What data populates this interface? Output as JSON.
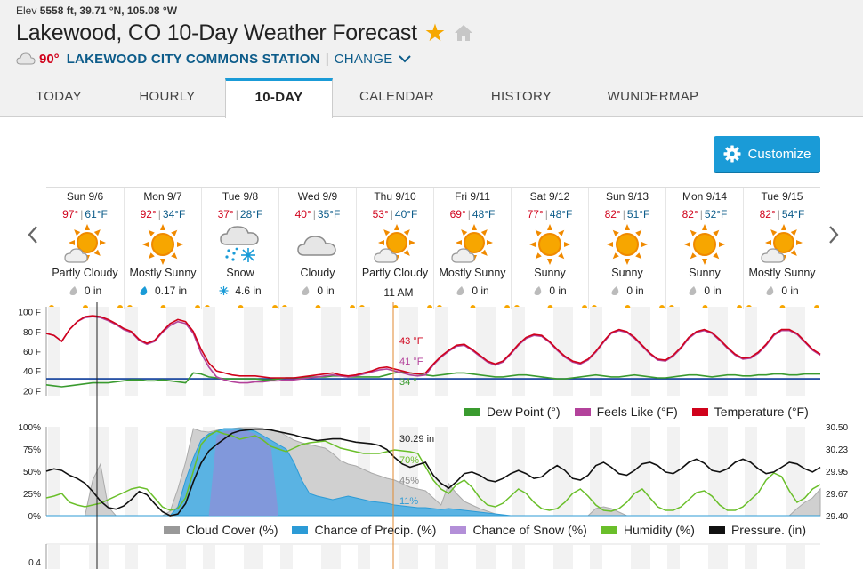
{
  "header": {
    "elev_label": "Elev",
    "elev_value": "5558",
    "coords": "ft, 39.71 °N, 105.08 °W",
    "title": "Lakewood, CO 10-Day Weather Forecast",
    "current_temp": "90°",
    "station": "LAKEWOOD CITY COMMONS STATION",
    "separator": "|",
    "change": "CHANGE"
  },
  "tabs": [
    {
      "label": "TODAY"
    },
    {
      "label": "HOURLY"
    },
    {
      "label": "10-DAY",
      "active": true
    },
    {
      "label": "CALENDAR"
    },
    {
      "label": "HISTORY"
    },
    {
      "label": "WUNDERMAP"
    }
  ],
  "customize_label": "Customize",
  "days": [
    {
      "date": "Sun 9/6",
      "hi": "97°",
      "lo": "61°F",
      "icon": "partly-cloudy-icon",
      "cond": "Partly Cloudy",
      "precip_icon": "drop-icon",
      "precip": "0 in"
    },
    {
      "date": "Mon 9/7",
      "hi": "92°",
      "lo": "34°F",
      "icon": "sunny-icon",
      "cond": "Mostly Sunny",
      "precip_icon": "rain-drop-icon",
      "precip": "0.17 in"
    },
    {
      "date": "Tue 9/8",
      "hi": "37°",
      "lo": "28°F",
      "icon": "snow-icon",
      "cond": "Snow",
      "precip_icon": "snowflake-icon",
      "precip": "4.6 in"
    },
    {
      "date": "Wed 9/9",
      "hi": "40°",
      "lo": "35°F",
      "icon": "cloudy-icon",
      "cond": "Cloudy",
      "precip_icon": "drop-icon",
      "precip": "0 in"
    },
    {
      "date": "Thu 9/10",
      "hi": "53°",
      "lo": "40°F",
      "icon": "partly-cloudy-icon",
      "cond": "Partly Cloudy",
      "precip_icon": "drop-icon",
      "precip": ""
    },
    {
      "date": "Fri 9/11",
      "hi": "69°",
      "lo": "48°F",
      "icon": "partly-cloudy-icon",
      "cond": "Mostly Sunny",
      "precip_icon": "drop-icon",
      "precip": "0 in"
    },
    {
      "date": "Sat 9/12",
      "hi": "77°",
      "lo": "48°F",
      "icon": "sunny-icon",
      "cond": "Sunny",
      "precip_icon": "drop-icon",
      "precip": "0 in"
    },
    {
      "date": "Sun 9/13",
      "hi": "82°",
      "lo": "51°F",
      "icon": "sunny-icon",
      "cond": "Sunny",
      "precip_icon": "drop-icon",
      "precip": "0 in"
    },
    {
      "date": "Mon 9/14",
      "hi": "82°",
      "lo": "52°F",
      "icon": "sunny-icon",
      "cond": "Sunny",
      "precip_icon": "drop-icon",
      "precip": "0 in"
    },
    {
      "date": "Tue 9/15",
      "hi": "82°",
      "lo": "54°F",
      "icon": "partly-cloudy-icon",
      "cond": "Mostly Sunny",
      "precip_icon": "drop-icon",
      "precip": "0 in"
    }
  ],
  "hover_time": "11 AM",
  "colors": {
    "accent": "#1a9bd7",
    "temperature": "#d0021b",
    "feels_like": "#b3429b",
    "dew_point": "#3a9b2f",
    "cloud_cover": "#999999",
    "precip": "#2c9bd6",
    "snow": "#8f8fd8",
    "humidity": "#6abf2a",
    "pressure": "#111111",
    "freezing": "#0d3c9a"
  },
  "chart_data": [
    {
      "type": "line",
      "name": "temperature-chart",
      "ylim": [
        15,
        105
      ],
      "yticks": [
        "100 F",
        "80 F",
        "60 F",
        "40 F",
        "20 F"
      ],
      "ytick_values": [
        100,
        80,
        60,
        40,
        20
      ],
      "x_days": 10,
      "series": [
        {
          "name": "Temperature (°F)",
          "color": "#d0021b",
          "values": [
            78,
            76,
            70,
            82,
            90,
            95,
            96,
            95,
            92,
            88,
            83,
            80,
            72,
            68,
            71,
            80,
            88,
            92,
            90,
            80,
            62,
            48,
            40,
            38,
            36,
            35,
            35,
            35,
            34,
            33,
            33,
            33,
            33,
            34,
            35,
            36,
            37,
            38,
            36,
            35,
            36,
            38,
            40,
            43,
            44,
            42,
            40,
            38,
            37,
            38,
            47,
            55,
            61,
            66,
            67,
            62,
            56,
            50,
            47,
            50,
            58,
            67,
            74,
            77,
            76,
            70,
            62,
            55,
            50,
            48,
            52,
            60,
            70,
            79,
            82,
            80,
            74,
            66,
            58,
            52,
            51,
            56,
            64,
            74,
            80,
            82,
            79,
            72,
            64,
            57,
            53,
            54,
            59,
            67,
            77,
            82,
            82,
            78,
            70,
            62,
            57
          ]
        },
        {
          "name": "Feels Like (°F)",
          "color": "#b3429b",
          "values": [
            78,
            76,
            70,
            82,
            90,
            94,
            95,
            94,
            91,
            87,
            82,
            79,
            71,
            67,
            70,
            79,
            86,
            90,
            88,
            78,
            58,
            44,
            34,
            31,
            29,
            28,
            28,
            29,
            29,
            30,
            30,
            31,
            31,
            32,
            33,
            34,
            35,
            36,
            35,
            34,
            35,
            37,
            39,
            41,
            42,
            40,
            38,
            36,
            35,
            36,
            46,
            54,
            60,
            65,
            66,
            61,
            55,
            49,
            46,
            49,
            57,
            66,
            73,
            76,
            75,
            69,
            61,
            54,
            49,
            47,
            51,
            59,
            69,
            78,
            81,
            79,
            73,
            65,
            57,
            51,
            50,
            55,
            63,
            73,
            79,
            81,
            78,
            71,
            63,
            56,
            52,
            53,
            58,
            66,
            76,
            81,
            81,
            77,
            69,
            61,
            56
          ]
        },
        {
          "name": "Dew Point (°)",
          "color": "#3a9b2f",
          "values": [
            26,
            25,
            24,
            25,
            26,
            27,
            28,
            28,
            28,
            29,
            30,
            31,
            31,
            30,
            30,
            31,
            30,
            29,
            28,
            38,
            37,
            34,
            33,
            32,
            32,
            32,
            32,
            32,
            31,
            31,
            32,
            33,
            33,
            33,
            34,
            34,
            34,
            35,
            35,
            34,
            34,
            34,
            34,
            34,
            36,
            38,
            39,
            38,
            37,
            36,
            35,
            36,
            37,
            38,
            38,
            37,
            36,
            35,
            34,
            34,
            35,
            36,
            36,
            35,
            34,
            33,
            32,
            32,
            33,
            34,
            35,
            36,
            35,
            34,
            34,
            35,
            36,
            35,
            34,
            33,
            33,
            34,
            35,
            36,
            36,
            35,
            34,
            35,
            36,
            36,
            35,
            35,
            36,
            36,
            37,
            37,
            36,
            36,
            37,
            37,
            37
          ]
        }
      ],
      "freezing_line": 32,
      "hover_labels": {
        "temperature": "43 °F",
        "feels_like": "41 °F",
        "dew_point": "34 °"
      }
    },
    {
      "type": "area",
      "name": "precip-chart",
      "ylim": [
        0,
        100
      ],
      "yticks_left": [
        "100%",
        "75%",
        "50%",
        "25%",
        "0%"
      ],
      "ytick_values": [
        100,
        75,
        50,
        25,
        0
      ],
      "yticks_right": [
        "30.50",
        "30.23",
        "29.95",
        "29.67",
        "29.40"
      ],
      "pressure_range": [
        29.4,
        30.5
      ],
      "series": [
        {
          "name": "Cloud Cover (%)",
          "color": "#999999",
          "values": [
            0,
            0,
            0,
            0,
            0,
            0,
            40,
            58,
            10,
            0,
            0,
            0,
            0,
            0,
            0,
            0,
            5,
            30,
            60,
            98,
            95,
            94,
            96,
            98,
            98,
            99,
            99,
            99,
            98,
            96,
            95,
            90,
            85,
            82,
            80,
            78,
            76,
            70,
            62,
            58,
            56,
            52,
            48,
            45,
            42,
            40,
            36,
            32,
            30,
            28,
            20,
            12,
            36,
            25,
            16,
            12,
            8,
            5,
            2,
            0,
            0,
            0,
            0,
            0,
            0,
            0,
            0,
            0,
            0,
            0,
            0,
            8,
            10,
            8,
            4,
            0,
            0,
            0,
            0,
            0,
            0,
            0,
            0,
            0,
            0,
            0,
            0,
            0,
            0,
            0,
            0,
            0,
            0,
            0,
            0,
            0,
            0,
            8,
            15,
            20,
            30
          ]
        },
        {
          "name": "Chance of Precip. (%)",
          "color": "#2c9bd6",
          "values": [
            0,
            0,
            0,
            0,
            0,
            0,
            0,
            0,
            0,
            0,
            0,
            0,
            0,
            0,
            0,
            0,
            0,
            10,
            40,
            65,
            85,
            92,
            95,
            98,
            98,
            98,
            97,
            95,
            90,
            85,
            80,
            75,
            60,
            40,
            25,
            22,
            20,
            18,
            20,
            22,
            20,
            18,
            16,
            15,
            14,
            12,
            11,
            10,
            9,
            9,
            8,
            7,
            8,
            7,
            6,
            5,
            4,
            3,
            2,
            1,
            0,
            0,
            0,
            0,
            0,
            0,
            0,
            0,
            0,
            0,
            0,
            0,
            0,
            0,
            0,
            0,
            0,
            0,
            0,
            0,
            0,
            0,
            0,
            0,
            0,
            0,
            0,
            0,
            0,
            0,
            0,
            0,
            0,
            0,
            0,
            0,
            0,
            0,
            0,
            0,
            0
          ]
        },
        {
          "name": "Chance of Snow (%)",
          "color": "#8f8fd8",
          "values": [
            0,
            0,
            0,
            0,
            0,
            0,
            0,
            0,
            0,
            0,
            0,
            0,
            0,
            0,
            0,
            0,
            0,
            0,
            0,
            0,
            0,
            0,
            90,
            95,
            96,
            96,
            95,
            92,
            88,
            80,
            0,
            0,
            0,
            0,
            0,
            0,
            0,
            0,
            0,
            0,
            0,
            0,
            0,
            0,
            0,
            0,
            0,
            0,
            0,
            0,
            0,
            0,
            0,
            0,
            0,
            0,
            0,
            0,
            0,
            0,
            0,
            0,
            0,
            0,
            0,
            0,
            0,
            0,
            0,
            0,
            0,
            0,
            0,
            0,
            0,
            0,
            0,
            0,
            0,
            0,
            0,
            0,
            0,
            0,
            0,
            0,
            0,
            0,
            0,
            0,
            0,
            0,
            0,
            0,
            0,
            0,
            0,
            0,
            0,
            0,
            0
          ]
        },
        {
          "name": "Humidity (%)",
          "color": "#6abf2a",
          "values": [
            20,
            22,
            25,
            15,
            12,
            10,
            12,
            14,
            18,
            22,
            26,
            30,
            32,
            30,
            20,
            10,
            6,
            8,
            20,
            50,
            80,
            90,
            95,
            92,
            90,
            86,
            88,
            90,
            85,
            78,
            75,
            72,
            76,
            80,
            82,
            83,
            84,
            80,
            76,
            74,
            72,
            70,
            70,
            70,
            72,
            74,
            73,
            72,
            70,
            55,
            40,
            30,
            25,
            35,
            40,
            32,
            20,
            12,
            10,
            14,
            22,
            30,
            25,
            15,
            8,
            6,
            8,
            15,
            25,
            30,
            22,
            12,
            6,
            5,
            8,
            15,
            25,
            30,
            20,
            10,
            6,
            6,
            10,
            18,
            26,
            28,
            22,
            12,
            6,
            6,
            10,
            18,
            26,
            40,
            48,
            44,
            28,
            15,
            20,
            30,
            35
          ]
        },
        {
          "name": "Pressure. (in)",
          "color": "#111111",
          "values": [
            29.95,
            29.98,
            29.96,
            29.9,
            29.86,
            29.8,
            29.7,
            29.58,
            29.5,
            29.48,
            29.52,
            29.6,
            29.7,
            29.66,
            29.55,
            29.45,
            29.4,
            29.42,
            29.55,
            29.82,
            30.05,
            30.2,
            30.28,
            30.35,
            30.42,
            30.45,
            30.46,
            30.47,
            30.47,
            30.46,
            30.44,
            30.42,
            30.4,
            30.37,
            30.35,
            30.33,
            30.34,
            30.35,
            30.35,
            30.33,
            30.31,
            30.3,
            30.29,
            30.27,
            30.22,
            30.12,
            30.04,
            30.0,
            30.03,
            30.06,
            29.9,
            29.8,
            29.74,
            29.82,
            29.92,
            29.94,
            29.9,
            29.84,
            29.82,
            29.86,
            29.92,
            29.96,
            29.92,
            29.86,
            29.88,
            29.96,
            30.02,
            29.96,
            29.86,
            29.84,
            29.9,
            30.02,
            30.06,
            30.0,
            29.92,
            29.9,
            29.96,
            30.04,
            30.06,
            30.02,
            29.94,
            29.92,
            29.98,
            30.06,
            30.1,
            30.05,
            29.96,
            29.94,
            29.98,
            30.06,
            30.1,
            30.06,
            29.98,
            29.92,
            29.94,
            30.0,
            30.06,
            30.04,
            29.98,
            29.94,
            30.0
          ]
        }
      ],
      "hover_labels": {
        "pressure": "30.29 in",
        "humidity": "70%",
        "cloud": "45%",
        "precip": "11%"
      }
    }
  ],
  "legend_temp": [
    "Dew Point (°)",
    "Feels Like (°F)",
    "Temperature (°F)"
  ],
  "legend_precip": [
    "Cloud Cover (%)",
    "Chance of Precip. (%)",
    "Chance of Snow (%)",
    "Humidity (%)",
    "Pressure. (in)"
  ],
  "third_chart_tick": "0.4"
}
